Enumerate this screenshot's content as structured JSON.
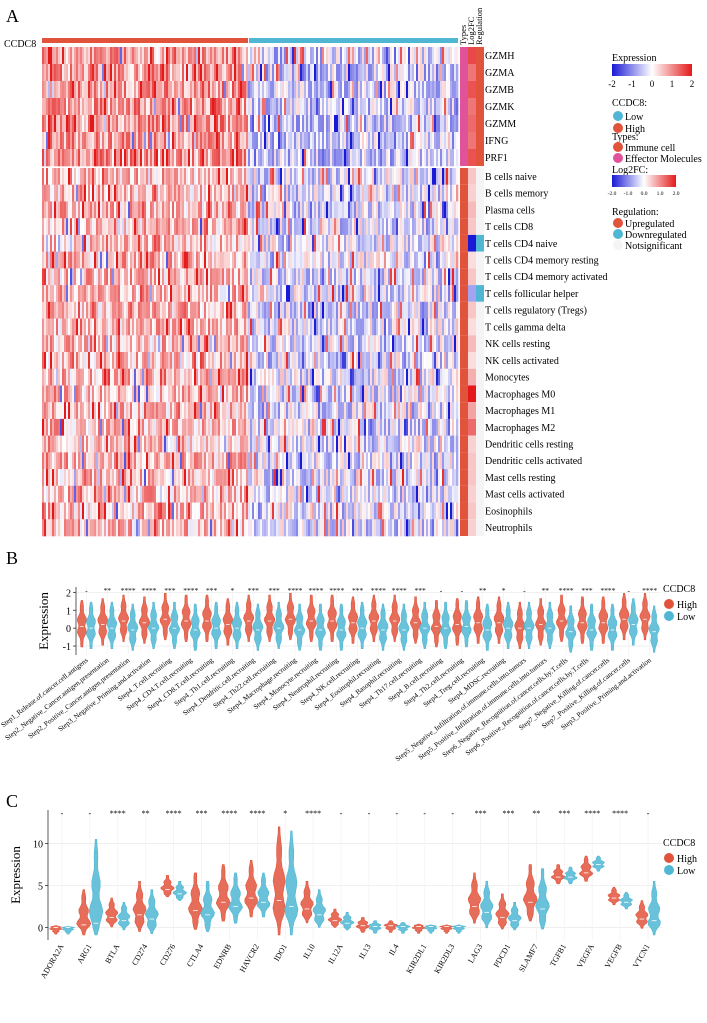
{
  "panels": {
    "a": "A",
    "b": "B",
    "c": "C"
  },
  "heatmap": {
    "group_row_label": "CCDC8",
    "column_headers": [
      "Types",
      "Log2FC",
      "Regulation"
    ],
    "effector_rows": [
      "GZMH",
      "GZMA",
      "GZMB",
      "GZMK",
      "GZMM",
      "IFNG",
      "PRF1"
    ],
    "immune_rows": [
      "B cells naive",
      "B cells memory",
      "Plasma cells",
      "T cells CD8",
      "T cells CD4 naive",
      "T cells CD4 memory resting",
      "T cells CD4 memory activated",
      "T cells follicular helper",
      "T cells regulatory (Tregs)",
      "T cells gamma delta",
      "NK cells resting",
      "NK cells activated",
      "Monocytes",
      "Macrophages M0",
      "Macrophages M1",
      "Macrophages M2",
      "Dendritic cells resting",
      "Dendritic cells activated",
      "Mast cells resting",
      "Mast cells activated",
      "Eosinophils",
      "Neutrophils"
    ],
    "log2fc_effector": [
      1.6,
      1.2,
      1.5,
      1.2,
      1.3,
      1.2,
      1.5
    ],
    "log2fc_immune": [
      0.5,
      0.4,
      0.6,
      0.5,
      -2.0,
      0.3,
      0.5,
      -0.8,
      0.5,
      0.3,
      0.6,
      0.3,
      0.7,
      2.0,
      0.8,
      1.3,
      0.4,
      0.5,
      0.5,
      0.4,
      0.5,
      0.4
    ],
    "regulation_immune": [
      "up",
      "up",
      "up",
      "up",
      "down",
      "up",
      "up",
      "down",
      "up",
      "up",
      "up",
      "up",
      "up",
      "up",
      "up",
      "up",
      "up",
      "up",
      "up",
      "up",
      "up",
      "up"
    ]
  },
  "legend": {
    "expression_title": "Expression",
    "expression_ticks": [
      "-2",
      "-1",
      "0",
      "1",
      "2"
    ],
    "ccdc8_title": "CCDC8:",
    "ccdc8_items": [
      "Low",
      "High"
    ],
    "types_title": "Types:",
    "types_items": [
      "Immune cell",
      "Effector Molecules"
    ],
    "log2fc_title": "Log2FC:",
    "log2fc_ticks": [
      "-2.0",
      "-1.0",
      "0.0",
      "1.0",
      "2.0"
    ],
    "regulation_title": "Regulation:",
    "regulation_items": [
      "Upregulated",
      "Downregulated",
      "Notsignificant"
    ]
  },
  "colors": {
    "high": "#e2533c",
    "low": "#4fb7d4",
    "heat_low": "#1a1ad6",
    "heat_high": "#e41a1a",
    "effector": "#e0529a"
  },
  "chart_data": [
    {
      "type": "violin",
      "panel": "B",
      "ylabel": "Expression",
      "ylim": [
        -1.5,
        2.3
      ],
      "yticks": [
        -1,
        0,
        1,
        2
      ],
      "legend_title": "CCDC8",
      "series": [
        {
          "name": "High"
        },
        {
          "name": "Low"
        }
      ],
      "categories": [
        "Step1_Release.of.cancer.cell.antigens",
        "Step2_Negative_Cancer.antigen.presentation",
        "Step2_Positive_Cancer.antigen.presentation",
        "Step3_Negative_Priming.and.activation",
        "Step4_T.cell.recruiting",
        "Step4_CD4.T.cell.recruiting",
        "Step4_CD8.T.cell.recruiting",
        "Step4_Th1.cell.recruiting",
        "Step4_Dendritic.cell.recruiting",
        "Step4_Th22.cell.recruiting",
        "Step4_Macrophage.recruiting",
        "Step4_Monocyte.recruiting",
        "Step4_Neutrophil.recruiting",
        "Step4_NK.cell.recruiting",
        "Step4_Eosinophil.recruiting",
        "Step4_Basophil.recruiting",
        "Step4_Th17.cell.recruiting",
        "Step4_B.cell.recruiting",
        "Step4_Th2.cell.recruiting",
        "Step4_Treg.cell.recruiting",
        "Step4_MDSC.recruiting",
        "Step5_Negative_Infiltration.of.immune.cells.into.tumors",
        "Step5_Positive_Infiltration.of.immune.cells.into.tumors",
        "Step6_Negative_Recognition.of.cancer.cells.by.T.cells",
        "Step6_Positive_Recognition.of.cancer.cells.by.T.cells",
        "Step7_Negative_Killing.of.cancer.cells",
        "Step7_Positive_Killing.of.cancer.cells",
        "Step3_Positive_Priming.and.activation"
      ],
      "significance": [
        "-",
        "**",
        "****",
        "****",
        "***",
        "****",
        "***",
        "*",
        "***",
        "***",
        "****",
        "****",
        "****",
        "***",
        "****",
        "****",
        "***",
        "-",
        "-",
        "**",
        "*",
        "-",
        "**",
        "****",
        "***",
        "****",
        "-",
        "****"
      ],
      "median_high": [
        0.1,
        0.2,
        0.4,
        0.3,
        0.5,
        0.4,
        0.4,
        0.2,
        0.4,
        0.4,
        0.5,
        0.4,
        0.4,
        0.3,
        0.4,
        0.4,
        0.3,
        0.1,
        0.2,
        0.3,
        0.3,
        0.0,
        0.2,
        0.4,
        0.3,
        0.3,
        0.5,
        0.5
      ],
      "median_low": [
        0.0,
        0.0,
        -0.1,
        0.0,
        0.0,
        -0.1,
        0.0,
        0.0,
        -0.1,
        0.0,
        -0.1,
        -0.1,
        -0.1,
        0.0,
        -0.1,
        -0.1,
        0.0,
        0.0,
        0.1,
        -0.1,
        0.0,
        0.0,
        0.0,
        -0.2,
        -0.1,
        -0.1,
        0.2,
        -0.2
      ]
    },
    {
      "type": "violin",
      "panel": "C",
      "ylabel": "Expression",
      "ylim": [
        -1.5,
        14
      ],
      "yticks": [
        0,
        5,
        10
      ],
      "legend_title": "CCDC8",
      "series": [
        {
          "name": "High"
        },
        {
          "name": "Low"
        }
      ],
      "categories": [
        "ADORA2A",
        "ARG1",
        "BTLA",
        "CD274",
        "CD276",
        "CTLA4",
        "EDNRB",
        "HAVCR2",
        "IDO1",
        "IL10",
        "IL12A",
        "IL13",
        "IL4",
        "KIR2DL1",
        "KIR2DL3",
        "LAG3",
        "PDCD1",
        "SLAMF7",
        "TGFB1",
        "VEGFA",
        "VEGFB",
        "VTCN1"
      ],
      "significance": [
        "-",
        "-",
        "****",
        "**",
        "****",
        "***",
        "****",
        "****",
        "*",
        "****",
        "-",
        "-",
        "-",
        "-",
        "-",
        "***",
        "***",
        "**",
        "***",
        "****",
        "****",
        "-"
      ],
      "median_high": [
        0.0,
        0.3,
        1.2,
        1.5,
        4.5,
        2.0,
        3.0,
        3.5,
        3.2,
        2.2,
        0.8,
        0.2,
        0.2,
        0.1,
        0.1,
        2.5,
        1.2,
        3.0,
        6.0,
        6.5,
        3.5,
        1.0
      ],
      "median_high_max": [
        0.2,
        4.5,
        3.5,
        5.5,
        6.2,
        6.5,
        7.5,
        8.0,
        12.0,
        5.5,
        2.2,
        1.2,
        0.8,
        0.4,
        0.3,
        6.5,
        4.0,
        7.5,
        7.5,
        8.5,
        4.8,
        3.2
      ],
      "median_low": [
        0.0,
        0.5,
        0.8,
        1.0,
        4.0,
        1.5,
        2.5,
        3.0,
        2.5,
        1.5,
        0.5,
        0.1,
        0.1,
        0.1,
        0.1,
        1.8,
        0.8,
        2.2,
        6.0,
        7.5,
        3.0,
        0.8
      ],
      "median_low_max": [
        0.1,
        10.5,
        3.0,
        4.5,
        5.5,
        5.5,
        6.5,
        6.5,
        11.5,
        4.5,
        1.8,
        0.8,
        0.6,
        0.3,
        0.3,
        5.5,
        3.0,
        7.0,
        7.2,
        8.5,
        4.2,
        5.5
      ]
    }
  ]
}
